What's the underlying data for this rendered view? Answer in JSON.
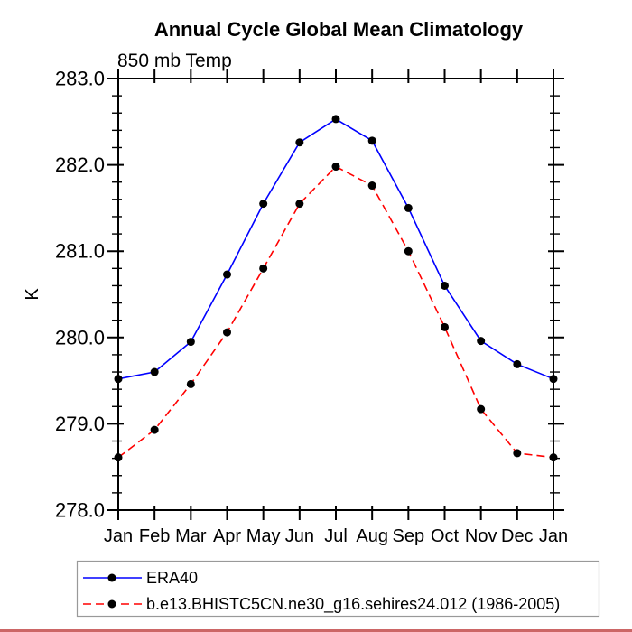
{
  "page": {
    "background": "#ffffff",
    "bottom_rule_color": "#cc6666"
  },
  "chart_data": {
    "type": "line",
    "title": "Annual Cycle Global Mean Climatology",
    "subtitle": "850 mb Temp",
    "ylabel": "K",
    "xlabel": "",
    "ylim": [
      278.0,
      283.0
    ],
    "ytick_major_step": 1.0,
    "ytick_minor_step": 0.2,
    "ytick_labels": [
      "278.0",
      "279.0",
      "280.0",
      "281.0",
      "282.0",
      "283.0"
    ],
    "grid": false,
    "legend_position": "bottom",
    "categories": [
      "Jan",
      "Feb",
      "Mar",
      "Apr",
      "May",
      "Jun",
      "Jul",
      "Aug",
      "Sep",
      "Oct",
      "Nov",
      "Dec",
      "Jan"
    ],
    "series": [
      {
        "name": "ERA40",
        "color": "#0000ff",
        "line_style": "solid",
        "marker": "circle",
        "marker_color": "#000000",
        "values": [
          279.52,
          279.6,
          279.95,
          280.73,
          281.55,
          282.26,
          282.53,
          282.28,
          281.5,
          280.6,
          279.96,
          279.69,
          279.52
        ]
      },
      {
        "name": "b.e13.BHISTC5CN.ne30_g16.sehires24.012 (1986-2005)",
        "color": "#ff0000",
        "line_style": "dashed",
        "marker": "circle",
        "marker_color": "#000000",
        "values": [
          278.61,
          278.93,
          279.46,
          280.06,
          280.8,
          281.55,
          281.98,
          281.76,
          281.0,
          280.12,
          279.17,
          278.66,
          278.61
        ]
      }
    ]
  }
}
